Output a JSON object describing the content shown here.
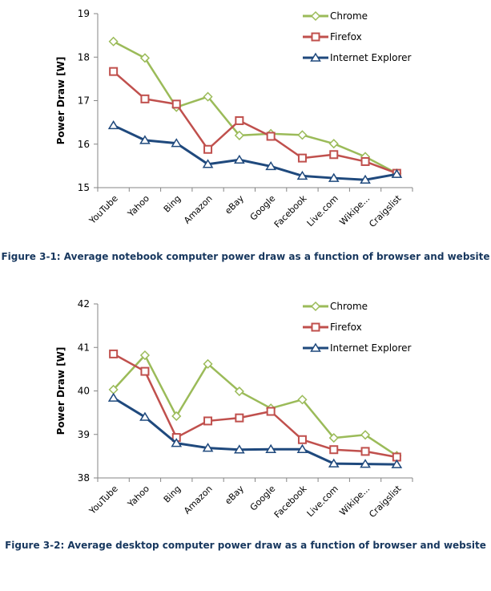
{
  "chart_data": [
    {
      "type": "line",
      "title": "Figure 3-1: Average notebook computer power draw as a function of browser and website",
      "xlabel": "",
      "ylabel": "Power Draw [W]",
      "ylim": [
        15,
        19
      ],
      "yticks": [
        15,
        16,
        17,
        18,
        19
      ],
      "grid": false,
      "legend_position": "top-right",
      "categories": [
        "YouTube",
        "Yahoo",
        "Bing",
        "Amazon",
        "eBay",
        "Google",
        "Facebook",
        "Live.com",
        "Wikipe...",
        "Craigslist"
      ],
      "series": [
        {
          "name": "Chrome",
          "color": "#9bbb59",
          "marker": "diamond",
          "values": [
            18.36,
            17.98,
            16.85,
            17.09,
            16.2,
            16.24,
            16.21,
            16.01,
            15.71,
            15.33
          ]
        },
        {
          "name": "Firefox",
          "color": "#c0504d",
          "marker": "square",
          "values": [
            17.67,
            17.04,
            16.92,
            15.88,
            16.54,
            16.18,
            15.68,
            15.76,
            15.6,
            15.33
          ]
        },
        {
          "name": "Internet Explorer",
          "color": "#1f497d",
          "marker": "triangle",
          "values": [
            16.43,
            16.09,
            16.02,
            15.54,
            15.64,
            15.49,
            15.27,
            15.22,
            15.18,
            15.31
          ]
        }
      ]
    },
    {
      "type": "line",
      "title": "Figure 3-2: Average desktop computer power draw as a function of browser and website",
      "xlabel": "",
      "ylabel": "Power Draw [W]",
      "ylim": [
        38,
        42
      ],
      "yticks": [
        38,
        39,
        40,
        41,
        42
      ],
      "grid": false,
      "legend_position": "top-right",
      "categories": [
        "YouTube",
        "Yahoo",
        "Bing",
        "Amazon",
        "eBay",
        "Google",
        "Facebook",
        "Live.com",
        "Wikipe...",
        "Craigslist"
      ],
      "series": [
        {
          "name": "Chrome",
          "color": "#9bbb59",
          "marker": "diamond",
          "values": [
            40.03,
            40.82,
            39.42,
            40.62,
            39.99,
            39.6,
            39.8,
            38.92,
            38.99,
            38.51
          ]
        },
        {
          "name": "Firefox",
          "color": "#c0504d",
          "marker": "square",
          "values": [
            40.85,
            40.45,
            38.93,
            39.31,
            39.38,
            39.53,
            38.88,
            38.65,
            38.61,
            38.48
          ]
        },
        {
          "name": "Internet Explorer",
          "color": "#1f497d",
          "marker": "triangle",
          "values": [
            39.84,
            39.4,
            38.8,
            38.69,
            38.65,
            38.66,
            38.66,
            38.33,
            38.32,
            38.31
          ]
        }
      ]
    }
  ],
  "captions": [
    "Figure 3-1: Average notebook computer power draw as a function of browser and website",
    "Figure 3-2: Average desktop computer power draw as a function of browser and website"
  ]
}
